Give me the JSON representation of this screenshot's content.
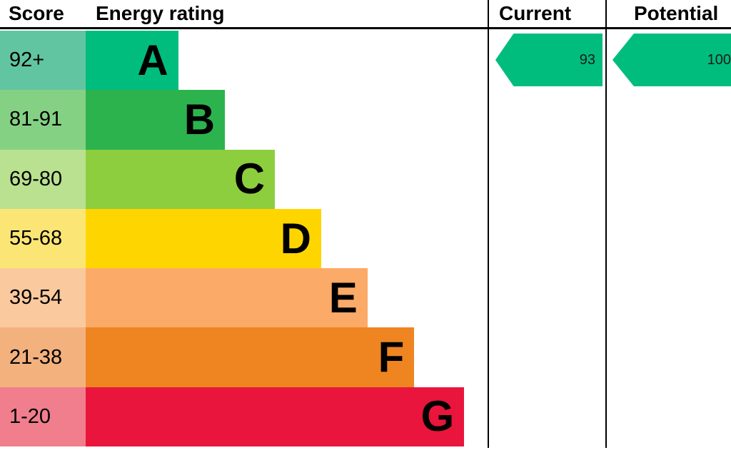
{
  "header": {
    "score": "Score",
    "energy_rating": "Energy rating",
    "current": "Current",
    "potential": "Potential"
  },
  "chart_data": {
    "type": "bar",
    "title": "Energy rating",
    "description": "EPC energy efficiency rating chart with bands A to G",
    "bands": [
      {
        "score": "92+",
        "letter": "A",
        "band_color": "#00bd7d",
        "score_color": "#62c5a2",
        "width_pct": 23.0
      },
      {
        "score": "81-91",
        "letter": "B",
        "band_color": "#2cb34e",
        "score_color": "#85d184",
        "width_pct": 34.6
      },
      {
        "score": "69-80",
        "letter": "C",
        "band_color": "#8dce3f",
        "score_color": "#b9e18f",
        "width_pct": 47.0
      },
      {
        "score": "55-68",
        "letter": "D",
        "band_color": "#ffd500",
        "score_color": "#fbe675",
        "width_pct": 58.5
      },
      {
        "score": "39-54",
        "letter": "E",
        "band_color": "#fcaa67",
        "score_color": "#fbc99e",
        "width_pct": 70.0
      },
      {
        "score": "21-38",
        "letter": "F",
        "band_color": "#ee8521",
        "score_color": "#f3b17e",
        "width_pct": 81.6
      },
      {
        "score": "1-20",
        "letter": "G",
        "band_color": "#e9153c",
        "score_color": "#f17e8d",
        "width_pct": 94.0
      }
    ],
    "current": {
      "value": "93",
      "band": "A",
      "color": "#00bd7d"
    },
    "potential": {
      "value": "100",
      "band": "A",
      "color": "#00bd7d"
    }
  }
}
